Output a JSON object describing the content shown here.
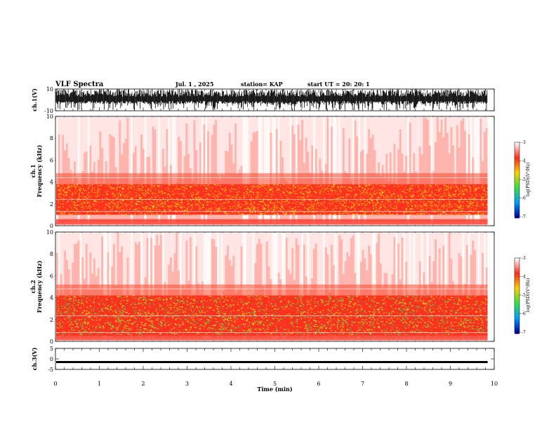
{
  "header": {
    "title": "VLF Spectra",
    "date": "Jul. 1 , 2025",
    "station": "station= KAP",
    "start": "start UT = 20: 20: 1"
  },
  "chart_data": [
    {
      "type": "line",
      "title": "",
      "ylabel": "ch.1(V)",
      "xlim": [
        0,
        10
      ],
      "ylim": [
        -10,
        10
      ],
      "yticks": [
        "10",
        "-10"
      ],
      "description_values": {
        "baseline_v": 0,
        "burst_min_v": -10,
        "burst_max_v": 10
      }
    },
    {
      "type": "heatmap",
      "ylabel": "ch.1\nFrequency (kHz)",
      "xlim": [
        0,
        10
      ],
      "ylim": [
        0,
        10
      ],
      "yticks": [
        "0",
        "2",
        "4",
        "6",
        "8",
        "10"
      ],
      "data_end_min": 9.85,
      "band_khz": [
        {
          "from": 1.0,
          "to": 3.8,
          "level": -4.2
        }
      ],
      "colorbar": {
        "label": "log(PSD)(V²/Hz)",
        "min": -7,
        "max": -3,
        "ticks": [
          "-3",
          "-4",
          "-5",
          "-6",
          "-7"
        ]
      }
    },
    {
      "type": "heatmap",
      "ylabel": "ch.2\nFrequency (kHz)",
      "xlim": [
        0,
        10
      ],
      "ylim": [
        0,
        10
      ],
      "yticks": [
        "0",
        "2",
        "4",
        "6",
        "8",
        "10"
      ],
      "data_end_min": 9.85,
      "band_khz": [
        {
          "from": 0.5,
          "to": 4.2,
          "level": -4.6
        }
      ],
      "colorbar": {
        "label": "log(PSD)(V²/Hz)",
        "min": -7,
        "max": -3,
        "ticks": [
          "-3",
          "-4",
          "-5",
          "-6",
          "-7"
        ]
      }
    },
    {
      "type": "line",
      "ylabel": "ch.3(V)",
      "xlabel": "Time (min)",
      "xlim": [
        0,
        10
      ],
      "ylim": [
        -5,
        5
      ],
      "yticks": [
        "5",
        "0",
        "-5"
      ],
      "xticks": [
        "0",
        "1",
        "2",
        "3",
        "4",
        "5",
        "6",
        "7",
        "8",
        "9",
        "10"
      ],
      "signal_center_v": -1.5,
      "signal_halfwidth_v": 0.5
    }
  ],
  "colors": {
    "axis": "#000000",
    "spectrum_low": "#ff3a1e",
    "spectrum_mid": "#ffd000",
    "spectrum_high": "#38e040"
  }
}
